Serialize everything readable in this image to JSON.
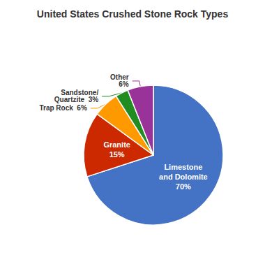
{
  "chart_data": {
    "type": "pie",
    "title": "United States Crushed Stone Rock Types",
    "categories": [
      "Limestone\nand Dolomite",
      "Granite",
      "Trap Rock",
      "Sandstone/\nQuartzite",
      "Other"
    ],
    "values": [
      70,
      15,
      6,
      3,
      6
    ],
    "value_labels": [
      "Limestone\nand Dolomite\n70%",
      "Granite\n15%",
      "Trap Rock  6%",
      "Sandstone/\nQuartzite  3%",
      "Other\n6%"
    ],
    "colors": [
      "#4472C4",
      "#CC2900",
      "#FF9900",
      "#228B22",
      "#993399"
    ],
    "data_labels": true
  }
}
